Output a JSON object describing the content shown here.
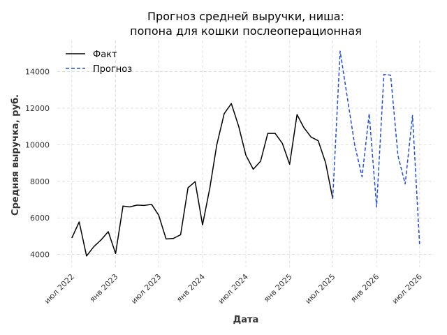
{
  "chart_data": {
    "type": "line",
    "title": [
      "Прогноз средней выручки, ниша:",
      "попона для кошки послеоперационная"
    ],
    "xlabel": "Дата",
    "ylabel": "Средняя выручка, руб.",
    "x_ticks": [
      {
        "date": "2022-07-01",
        "label": "июл 2022"
      },
      {
        "date": "2023-01-01",
        "label": "янв 2023"
      },
      {
        "date": "2023-07-01",
        "label": "июл 2023"
      },
      {
        "date": "2024-01-01",
        "label": "янв 2024"
      },
      {
        "date": "2024-07-01",
        "label": "июл 2024"
      },
      {
        "date": "2025-01-01",
        "label": "янв 2025"
      },
      {
        "date": "2025-07-01",
        "label": "июл 2025"
      },
      {
        "date": "2026-01-01",
        "label": "янв 2026"
      },
      {
        "date": "2026-07-01",
        "label": "июл 2026"
      }
    ],
    "y_ticks": [
      4000,
      6000,
      8000,
      10000,
      12000,
      14000
    ],
    "xlim": [
      "2022-05-01",
      "2026-09-01"
    ],
    "ylim": [
      3300,
      15700
    ],
    "grid": true,
    "legend_position": "top-left",
    "series": [
      {
        "name": "Факт",
        "style": "solid",
        "color": "#000000",
        "points": [
          [
            "2022-07-01",
            4900
          ],
          [
            "2022-08-01",
            5780
          ],
          [
            "2022-09-01",
            3920
          ],
          [
            "2022-10-01",
            4420
          ],
          [
            "2022-11-01",
            4800
          ],
          [
            "2022-12-01",
            5250
          ],
          [
            "2023-01-01",
            4050
          ],
          [
            "2023-02-01",
            6650
          ],
          [
            "2023-03-01",
            6600
          ],
          [
            "2023-04-01",
            6700
          ],
          [
            "2023-05-01",
            6680
          ],
          [
            "2023-06-01",
            6740
          ],
          [
            "2023-07-01",
            6150
          ],
          [
            "2023-08-01",
            4850
          ],
          [
            "2023-09-01",
            4880
          ],
          [
            "2023-10-01",
            5080
          ],
          [
            "2023-11-01",
            7650
          ],
          [
            "2023-12-01",
            7980
          ],
          [
            "2024-01-01",
            5620
          ],
          [
            "2024-02-01",
            7650
          ],
          [
            "2024-03-01",
            10000
          ],
          [
            "2024-04-01",
            11700
          ],
          [
            "2024-05-01",
            12250
          ],
          [
            "2024-06-01",
            11000
          ],
          [
            "2024-07-01",
            9430
          ],
          [
            "2024-08-01",
            8660
          ],
          [
            "2024-09-01",
            9100
          ],
          [
            "2024-10-01",
            10620
          ],
          [
            "2024-11-01",
            10620
          ],
          [
            "2024-12-01",
            10080
          ],
          [
            "2025-01-01",
            8930
          ],
          [
            "2025-02-01",
            11650
          ],
          [
            "2025-03-01",
            10950
          ],
          [
            "2025-04-01",
            10420
          ],
          [
            "2025-05-01",
            10220
          ],
          [
            "2025-06-01",
            9020
          ],
          [
            "2025-07-01",
            7050
          ]
        ]
      },
      {
        "name": "Прогноз",
        "style": "dashed",
        "color": "#1f4fd6",
        "points": [
          [
            "2025-07-01",
            7050
          ],
          [
            "2025-08-01",
            15120
          ],
          [
            "2025-09-01",
            12500
          ],
          [
            "2025-10-01",
            10000
          ],
          [
            "2025-11-01",
            8250
          ],
          [
            "2025-12-01",
            11700
          ],
          [
            "2026-01-01",
            6600
          ],
          [
            "2026-02-01",
            13850
          ],
          [
            "2026-03-01",
            13800
          ],
          [
            "2026-04-01",
            9400
          ],
          [
            "2026-05-01",
            7850
          ],
          [
            "2026-06-01",
            11600
          ],
          [
            "2026-07-01",
            4450
          ]
        ]
      }
    ]
  }
}
